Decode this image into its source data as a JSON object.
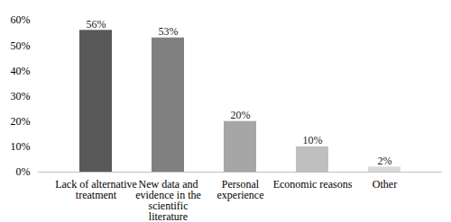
{
  "chart_data": {
    "type": "bar",
    "categories": [
      "Lack of alternative treatment",
      "New data and evidence in the scientific literature",
      "Personal experience",
      "Economic reasons",
      "Other"
    ],
    "values": [
      56,
      53,
      20,
      10,
      2
    ],
    "value_labels": [
      "56%",
      "53%",
      "20%",
      "10%",
      "2%"
    ],
    "colors": [
      "#595959",
      "#808080",
      "#a6a6a6",
      "#bfbfbf",
      "#d9d9d9"
    ],
    "ylim": [
      0,
      60
    ],
    "yticks": [
      {
        "value": 0,
        "label": "0%"
      },
      {
        "value": 10,
        "label": "10%"
      },
      {
        "value": 20,
        "label": "20%"
      },
      {
        "value": 30,
        "label": "30%"
      },
      {
        "value": 40,
        "label": "40%"
      },
      {
        "value": 50,
        "label": "50%"
      },
      {
        "value": 60,
        "label": "60%"
      }
    ],
    "data_labels": true,
    "grid": false
  }
}
